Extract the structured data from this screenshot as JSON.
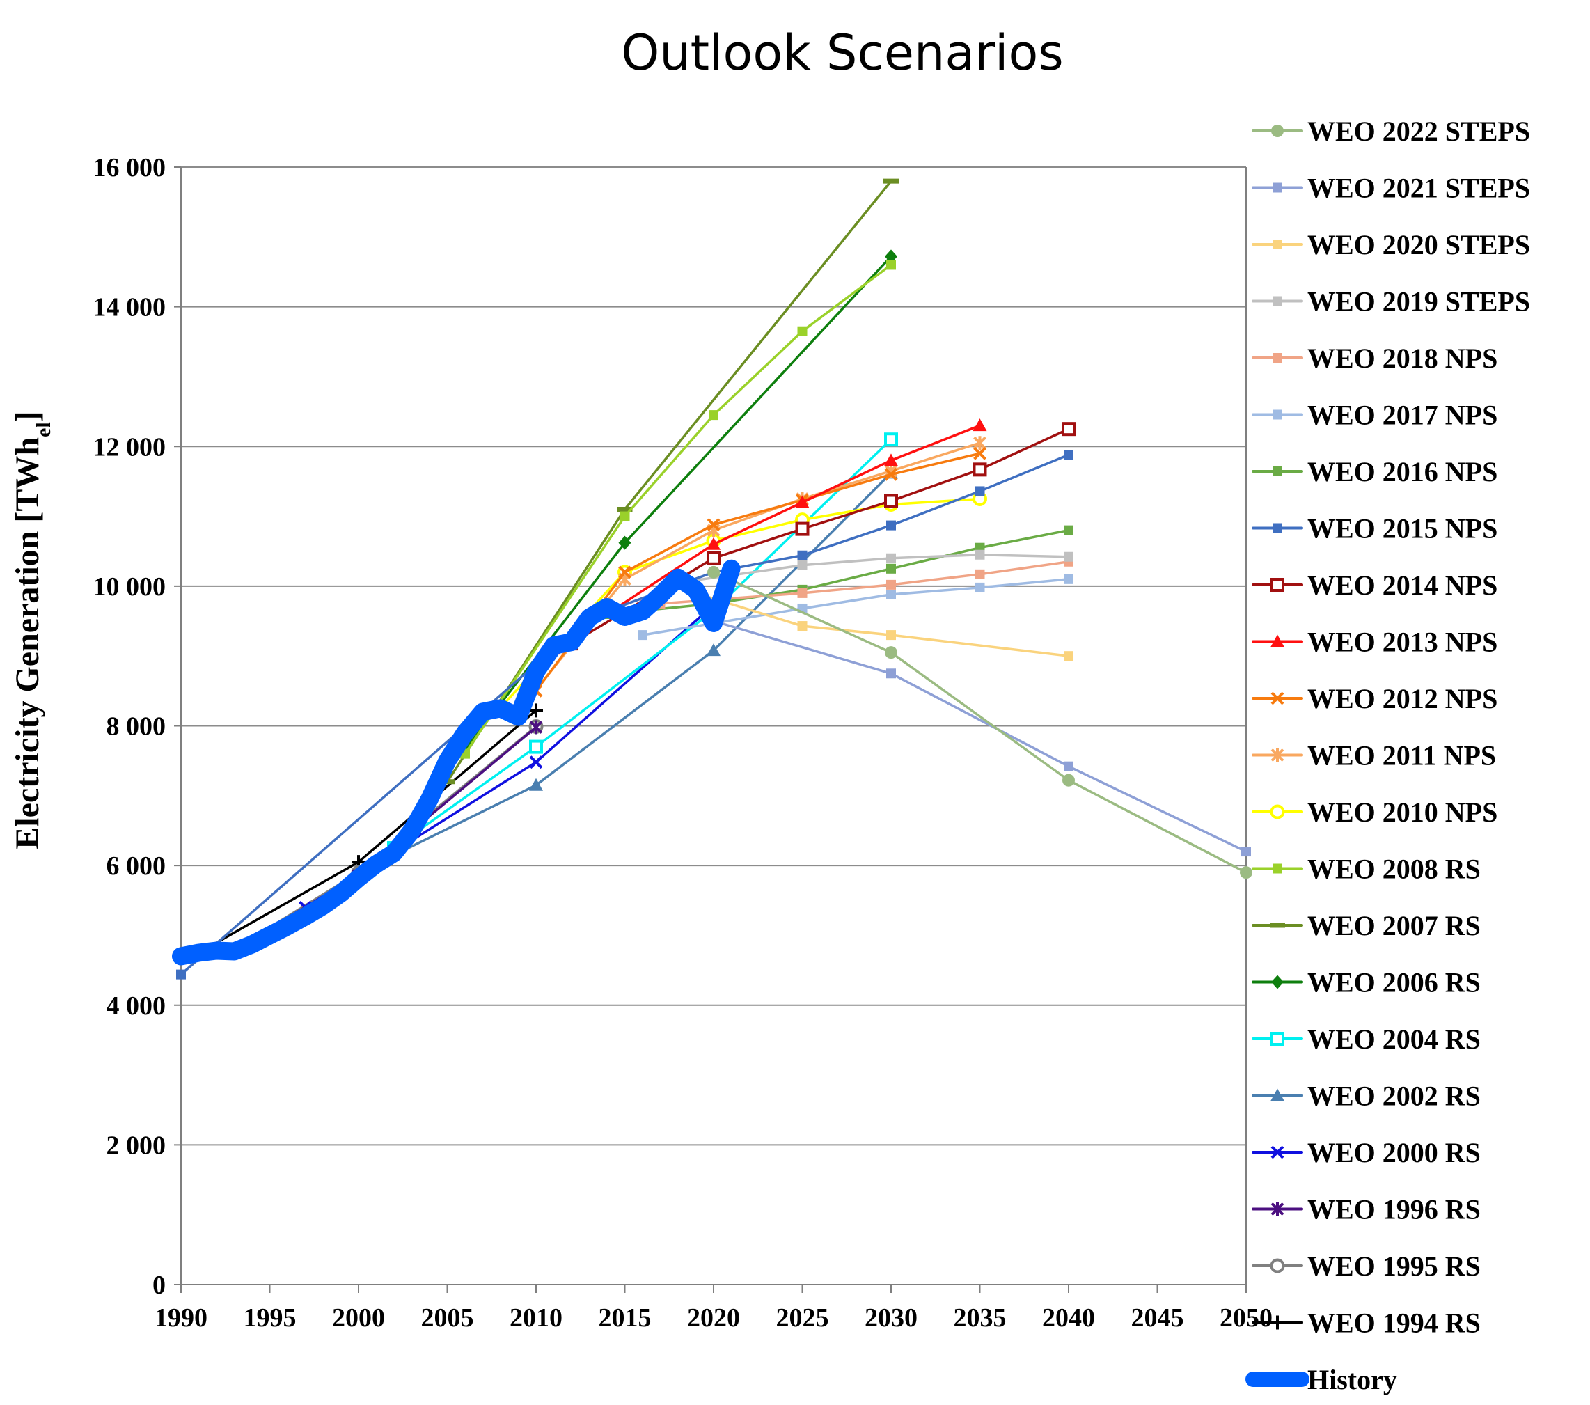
{
  "chart_data": {
    "type": "line",
    "title": "Outlook Scenarios",
    "xlabel": "",
    "ylabel_main": "Electricity Generation [TWh",
    "ylabel_sub": "el",
    "ylabel_end": "]",
    "xlim": [
      1990,
      2050
    ],
    "ylim": [
      0,
      16000
    ],
    "x_ticks": [
      1990,
      1995,
      2000,
      2005,
      2010,
      2015,
      2020,
      2025,
      2030,
      2035,
      2040,
      2045,
      2050
    ],
    "x_tick_labels": [
      "1990",
      "1995",
      "2000",
      "2005",
      "2010",
      "2015",
      "2020",
      "2025",
      "2030",
      "2035",
      "2040",
      "2045",
      "2050"
    ],
    "y_ticks": [
      0,
      2000,
      4000,
      6000,
      8000,
      10000,
      12000,
      14000,
      16000
    ],
    "y_tick_labels": [
      "0",
      "2 000",
      "4 000",
      "6 000",
      "8 000",
      "10 000",
      "12 000",
      "14 000",
      "16 000"
    ],
    "grid": "horizontal",
    "legend_position": "right",
    "series": [
      {
        "name": "WEO 2022 STEPS",
        "color": "#9bbb82",
        "marker": "circle",
        "points": [
          [
            2020,
            10200
          ],
          [
            2030,
            9050
          ],
          [
            2040,
            7220
          ],
          [
            2050,
            5900
          ]
        ]
      },
      {
        "name": "WEO 2021 STEPS",
        "color": "#8ea0d6",
        "marker": "square",
        "points": [
          [
            2020,
            9500
          ],
          [
            2030,
            8750
          ],
          [
            2040,
            7420
          ],
          [
            2050,
            6200
          ]
        ]
      },
      {
        "name": "WEO 2020 STEPS",
        "color": "#fad37d",
        "marker": "square",
        "points": [
          [
            2019,
            9900
          ],
          [
            2025,
            9430
          ],
          [
            2030,
            9300
          ],
          [
            2040,
            9000
          ]
        ]
      },
      {
        "name": "WEO 2019 STEPS",
        "color": "#c0c0c0",
        "marker": "square",
        "points": [
          [
            2018,
            10050
          ],
          [
            2025,
            10300
          ],
          [
            2030,
            10400
          ],
          [
            2035,
            10450
          ],
          [
            2040,
            10420
          ]
        ]
      },
      {
        "name": "WEO 2018 NPS",
        "color": "#f0a486",
        "marker": "square",
        "points": [
          [
            2017,
            9750
          ],
          [
            2025,
            9900
          ],
          [
            2030,
            10020
          ],
          [
            2035,
            10170
          ],
          [
            2040,
            10350
          ]
        ]
      },
      {
        "name": "WEO 2017 NPS",
        "color": "#9fbbe3",
        "marker": "square",
        "points": [
          [
            2016,
            9300
          ],
          [
            2025,
            9680
          ],
          [
            2030,
            9880
          ],
          [
            2035,
            9980
          ],
          [
            2040,
            10100
          ]
        ]
      },
      {
        "name": "WEO 2016 NPS",
        "color": "#6aab45",
        "marker": "square",
        "points": [
          [
            2014,
            9600
          ],
          [
            2020,
            9750
          ],
          [
            2025,
            9950
          ],
          [
            2030,
            10250
          ],
          [
            2035,
            10550
          ],
          [
            2040,
            10800
          ]
        ]
      },
      {
        "name": "WEO 2015 NPS",
        "color": "#3f6fc1",
        "marker": "square",
        "points": [
          [
            1990,
            4440
          ],
          [
            2013,
            9550
          ],
          [
            2020,
            10200
          ],
          [
            2025,
            10440
          ],
          [
            2030,
            10870
          ],
          [
            2035,
            11360
          ],
          [
            2040,
            11880
          ]
        ]
      },
      {
        "name": "WEO 2014 NPS",
        "color": "#a11010",
        "marker": "open-square",
        "points": [
          [
            2012,
            9180
          ],
          [
            2020,
            10400
          ],
          [
            2025,
            10820
          ],
          [
            2030,
            11220
          ],
          [
            2035,
            11670
          ],
          [
            2040,
            12250
          ]
        ]
      },
      {
        "name": "WEO 2013 NPS",
        "color": "#ff1010",
        "marker": "triangle",
        "points": [
          [
            2011,
            9100
          ],
          [
            2020,
            10600
          ],
          [
            2025,
            11200
          ],
          [
            2030,
            11800
          ],
          [
            2035,
            12300
          ]
        ]
      },
      {
        "name": "WEO 2012 NPS",
        "color": "#f77b0f",
        "marker": "x",
        "points": [
          [
            2010,
            8500
          ],
          [
            2015,
            10200
          ],
          [
            2020,
            10880
          ],
          [
            2025,
            11230
          ],
          [
            2030,
            11600
          ],
          [
            2035,
            11900
          ]
        ]
      },
      {
        "name": "WEO 2011 NPS",
        "color": "#f9a860",
        "marker": "star",
        "points": [
          [
            2009,
            8200
          ],
          [
            2015,
            10100
          ],
          [
            2020,
            10800
          ],
          [
            2025,
            11250
          ],
          [
            2030,
            11650
          ],
          [
            2035,
            12050
          ]
        ]
      },
      {
        "name": "WEO 2010 NPS",
        "color": "#ffff00",
        "marker": "open-circle",
        "points": [
          [
            2008,
            8260
          ],
          [
            2015,
            10200
          ],
          [
            2020,
            10650
          ],
          [
            2025,
            10950
          ],
          [
            2030,
            11170
          ],
          [
            2035,
            11250
          ]
        ]
      },
      {
        "name": "WEO 2008 RS",
        "color": "#9ad12a",
        "marker": "square",
        "points": [
          [
            2006,
            7600
          ],
          [
            2015,
            11000
          ],
          [
            2020,
            12450
          ],
          [
            2025,
            13650
          ],
          [
            2030,
            14600
          ]
        ]
      },
      {
        "name": "WEO 2007 RS",
        "color": "#6b8e23",
        "marker": "dash",
        "points": [
          [
            2005,
            7200
          ],
          [
            2015,
            11100
          ],
          [
            2030,
            15800
          ]
        ]
      },
      {
        "name": "WEO 2006 RS",
        "color": "#0e7f0e",
        "marker": "diamond",
        "points": [
          [
            2004,
            7000
          ],
          [
            2015,
            10620
          ],
          [
            2030,
            14720
          ]
        ]
      },
      {
        "name": "WEO 2004 RS",
        "color": "#00f0f0",
        "marker": "open-square",
        "points": [
          [
            2002,
            6250
          ],
          [
            2010,
            7700
          ],
          [
            2020,
            9650
          ],
          [
            2030,
            12100
          ]
        ]
      },
      {
        "name": "WEO 2002 RS",
        "color": "#4a7fb0",
        "marker": "triangle",
        "points": [
          [
            2000,
            5900
          ],
          [
            2010,
            7150
          ],
          [
            2020,
            9080
          ],
          [
            2030,
            11620
          ]
        ]
      },
      {
        "name": "WEO 2000 RS",
        "color": "#1010e0",
        "marker": "x",
        "points": [
          [
            1997,
            5400
          ],
          [
            2010,
            7480
          ],
          [
            2020,
            9730
          ]
        ]
      },
      {
        "name": "WEO 1996 RS",
        "color": "#4b0f80",
        "marker": "star",
        "points": [
          [
            1993,
            4800
          ],
          [
            2000,
            5860
          ],
          [
            2010,
            7980
          ]
        ]
      },
      {
        "name": "WEO 1995 RS",
        "color": "#808080",
        "marker": "open-circle",
        "points": [
          [
            1993,
            4800
          ],
          [
            2000,
            5900
          ],
          [
            2010,
            7990
          ]
        ]
      },
      {
        "name": "WEO 1994 RS",
        "color": "#000000",
        "marker": "plus",
        "points": [
          [
            1991,
            4750
          ],
          [
            2000,
            6050
          ],
          [
            2010,
            8220
          ]
        ]
      },
      {
        "name": "History",
        "color": "#0060ff",
        "marker": "none",
        "thick": true,
        "points": [
          [
            1990,
            4700
          ],
          [
            1991,
            4750
          ],
          [
            1992,
            4780
          ],
          [
            1993,
            4770
          ],
          [
            1994,
            4870
          ],
          [
            1995,
            5000
          ],
          [
            1996,
            5130
          ],
          [
            1997,
            5270
          ],
          [
            1998,
            5420
          ],
          [
            1999,
            5600
          ],
          [
            2000,
            5820
          ],
          [
            2001,
            6020
          ],
          [
            2002,
            6180
          ],
          [
            2003,
            6500
          ],
          [
            2004,
            6950
          ],
          [
            2005,
            7500
          ],
          [
            2006,
            7900
          ],
          [
            2007,
            8200
          ],
          [
            2008,
            8250
          ],
          [
            2009,
            8130
          ],
          [
            2010,
            8780
          ],
          [
            2011,
            9150
          ],
          [
            2012,
            9200
          ],
          [
            2013,
            9550
          ],
          [
            2014,
            9700
          ],
          [
            2015,
            9560
          ],
          [
            2016,
            9640
          ],
          [
            2017,
            9870
          ],
          [
            2018,
            10120
          ],
          [
            2019,
            9950
          ],
          [
            2020,
            9470
          ],
          [
            2021,
            10250
          ]
        ]
      }
    ]
  }
}
